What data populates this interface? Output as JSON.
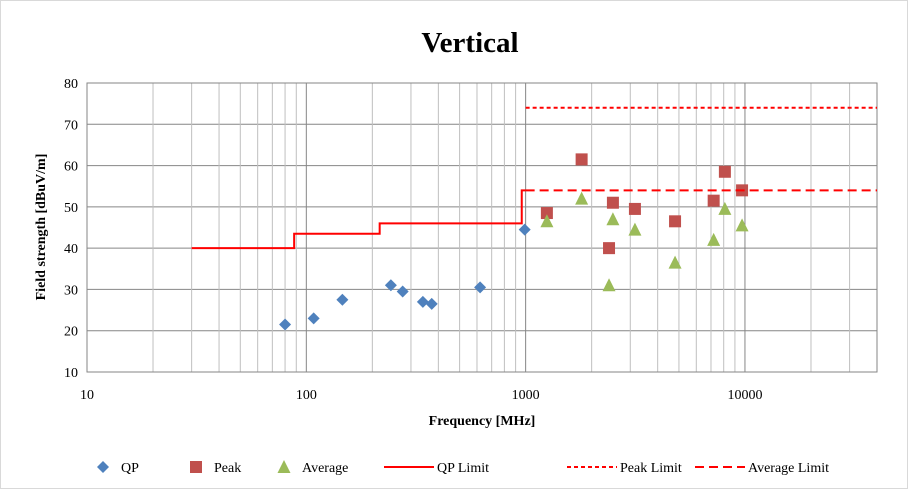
{
  "chart_data": {
    "type": "scatter",
    "title": "Vertical",
    "xlabel": "Frequency [MHz]",
    "ylabel": "Field strength [dBuV/m]",
    "x_scale": "log",
    "xlim": [
      10,
      40000
    ],
    "ylim": [
      10,
      80
    ],
    "x_ticks": [
      10,
      100,
      1000,
      10000
    ],
    "x_tick_labels": [
      "10",
      "100",
      "1000",
      "10000"
    ],
    "y_ticks": [
      10,
      20,
      30,
      40,
      50,
      60,
      70,
      80
    ],
    "y_tick_labels": [
      "10",
      "20",
      "30",
      "40",
      "50",
      "60",
      "70",
      "80"
    ],
    "grid": true,
    "legend_position": "bottom",
    "series": [
      {
        "name": "QP",
        "kind": "marker",
        "marker": "diamond",
        "color": "#4f81bd",
        "points": [
          [
            80,
            21.5
          ],
          [
            108,
            23
          ],
          [
            146,
            27.5
          ],
          [
            243,
            31
          ],
          [
            275,
            29.5
          ],
          [
            340,
            27
          ],
          [
            373,
            26.5
          ],
          [
            620,
            30.5
          ],
          [
            990,
            44.5
          ]
        ]
      },
      {
        "name": "Peak",
        "kind": "marker",
        "marker": "square",
        "color": "#c0504d",
        "points": [
          [
            1250,
            48.5
          ],
          [
            1800,
            61.5
          ],
          [
            2400,
            40
          ],
          [
            2500,
            51
          ],
          [
            3150,
            49.5
          ],
          [
            4800,
            46.5
          ],
          [
            7200,
            51.5
          ],
          [
            8100,
            58.5
          ],
          [
            9700,
            54
          ]
        ]
      },
      {
        "name": "Average",
        "kind": "marker",
        "marker": "triangle",
        "color": "#9bbb59",
        "points": [
          [
            1250,
            46.5
          ],
          [
            1800,
            52
          ],
          [
            2400,
            31
          ],
          [
            2500,
            47
          ],
          [
            3150,
            44.5
          ],
          [
            4800,
            36.5
          ],
          [
            7200,
            42
          ],
          [
            8100,
            49.5
          ],
          [
            9700,
            45.5
          ]
        ]
      },
      {
        "name": "QP Limit",
        "kind": "line",
        "dash": "solid",
        "color": "#ff0000",
        "points": [
          [
            30,
            40
          ],
          [
            88,
            40
          ],
          [
            88,
            43.5
          ],
          [
            216,
            43.5
          ],
          [
            216,
            46
          ],
          [
            960,
            46
          ],
          [
            960,
            54
          ],
          [
            1000,
            54
          ]
        ]
      },
      {
        "name": "Peak Limit",
        "kind": "line",
        "dash": "short",
        "color": "#ff0000",
        "points": [
          [
            1000,
            74
          ],
          [
            40000,
            74
          ]
        ]
      },
      {
        "name": "Average Limit",
        "kind": "line",
        "dash": "long",
        "color": "#ff0000",
        "points": [
          [
            1000,
            54
          ],
          [
            40000,
            54
          ]
        ]
      }
    ]
  }
}
